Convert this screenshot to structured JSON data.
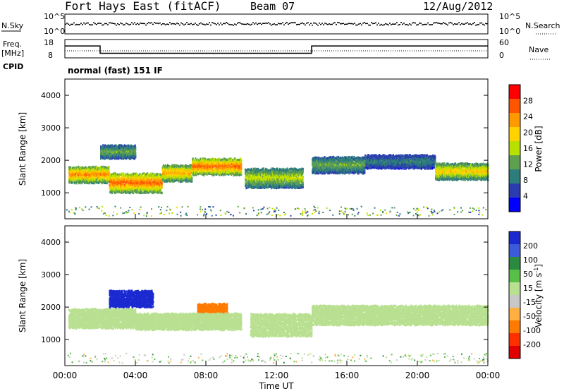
{
  "header": {
    "title": "Fort Hays East (fitACF)",
    "beam": "Beam 07",
    "date": "12/Aug/2012"
  },
  "strips": {
    "nsky_label": "N.Sky",
    "nsky_ticks": [
      "10^5",
      "10^0"
    ],
    "nsearch_label": "N.Search",
    "nsearch_ticks": [
      "10^5",
      "10^0"
    ],
    "freq_label_1": "Freq.",
    "freq_label_2": "[MHz]",
    "freq_ticks": [
      "18",
      "8"
    ],
    "nave_label": "Nave",
    "nave_ticks": [
      "60",
      "0"
    ],
    "cpid_label": "CPID",
    "cpid_text": "normal (fast) 151 IF"
  },
  "chart_data": [
    {
      "type": "line",
      "name": "frequency",
      "x": [
        0,
        2.0,
        2.0,
        14.0,
        14.0,
        24
      ],
      "y": [
        14.5,
        14.5,
        10.5,
        10.5,
        14.5,
        14.5
      ],
      "xlim": [
        0,
        24
      ],
      "ylim": [
        8,
        18
      ]
    },
    {
      "type": "heatmap",
      "name": "power",
      "ylabel": "Slant Range [km]",
      "yticks": [
        "4000",
        "3000",
        "2000",
        "1000"
      ],
      "ylim": [
        200,
        4500
      ],
      "colorbar_label": "Power [dB]",
      "colorbar_ticks": [
        "28",
        "24",
        "20",
        "16",
        "12",
        "8",
        "4"
      ],
      "colorbar_colors": [
        "#ff0000",
        "#ff5500",
        "#ff9900",
        "#ffd200",
        "#b8e000",
        "#5fa050",
        "#2e7d7d",
        "#2a3cb0",
        "#0000ff"
      ],
      "bands": [
        {
          "x": [
            0.2,
            2.5
          ],
          "y": 1600,
          "w": 250,
          "v": 24
        },
        {
          "x": [
            2.5,
            5.5
          ],
          "y": 1350,
          "w": 300,
          "v": 26
        },
        {
          "x": [
            5.5,
            7.2
          ],
          "y": 1650,
          "w": 250,
          "v": 22
        },
        {
          "x": [
            7.2,
            10.0
          ],
          "y": 1850,
          "w": 250,
          "v": 26
        },
        {
          "x": [
            10.2,
            13.5
          ],
          "y": 1500,
          "w": 300,
          "v": 16
        },
        {
          "x": [
            14.0,
            17.0
          ],
          "y": 1900,
          "w": 250,
          "v": 12
        },
        {
          "x": [
            17.0,
            21.0
          ],
          "y": 2000,
          "w": 200,
          "v": 8
        },
        {
          "x": [
            21.0,
            24.0
          ],
          "y": 1700,
          "w": 250,
          "v": 20
        },
        {
          "x": [
            2.0,
            4.0
          ],
          "y": 2300,
          "w": 200,
          "v": 12
        }
      ]
    },
    {
      "type": "heatmap",
      "name": "velocity",
      "ylabel": "Slant Range [km]",
      "yticks": [
        "4000",
        "3000",
        "2000",
        "1000"
      ],
      "ylim": [
        200,
        4500
      ],
      "colorbar_label": "Velocity [m s",
      "colorbar_exp": "-1",
      "colorbar_close": "]",
      "colorbar_ticks": [
        "200",
        "100",
        "50",
        "15",
        "-15",
        "-50",
        "-100",
        "-200"
      ],
      "colorbar_colors": [
        "#1b2ad0",
        "#3b5bd8",
        "#2a8a40",
        "#58c048",
        "#b8e090",
        "#c8c8c8",
        "#ffb040",
        "#ff7a00",
        "#ff3000",
        "#e00000"
      ],
      "bands": [
        {
          "x": [
            0.2,
            4.0
          ],
          "y": 1700,
          "w": 300,
          "v": 0
        },
        {
          "x": [
            2.5,
            5.0
          ],
          "y": 2300,
          "w": 250,
          "v": 220
        },
        {
          "x": [
            7.5,
            9.2
          ],
          "y": 1900,
          "w": 250,
          "v": -120
        },
        {
          "x": [
            4.0,
            10.0
          ],
          "y": 1600,
          "w": 250,
          "v": 0
        },
        {
          "x": [
            10.5,
            14.0
          ],
          "y": 1500,
          "w": 350,
          "v": 0
        },
        {
          "x": [
            14.0,
            24.0
          ],
          "y": 1800,
          "w": 300,
          "v": 0
        }
      ],
      "xlabel": "Time UT",
      "xticks": [
        "00:00",
        "04:00",
        "08:00",
        "12:00",
        "16:00",
        "20:00",
        "00:00"
      ]
    }
  ]
}
